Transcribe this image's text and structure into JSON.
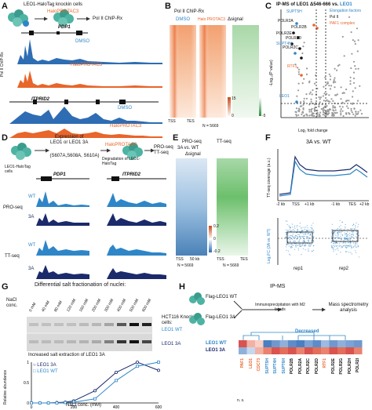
{
  "panels": {
    "A": {
      "letter": "A",
      "title": "LEO1-HaloTag knockin cells",
      "protac": "HaloPROTAC3",
      "chip": "Pol II ChIP-Rx",
      "track_group": "Pol II ChIP-Rx",
      "cond1": "DMSO",
      "cond2": "HaloPROTAC3",
      "gene1": "PDP1",
      "gene2": "ITPRID2"
    },
    "B": {
      "letter": "B",
      "title": "Pol II ChIP-Rx",
      "col1": "DMSO",
      "col2": "Halo PROTAC3",
      "col3": "Δsignal",
      "tss": "TSS",
      "tes": "TES",
      "n": "N = 5669",
      "scale_max": "15",
      "scale_min": "0",
      "scale2": "-5"
    },
    "C": {
      "letter": "C",
      "title_a": "IP-MS of LEO1 Δ546-666",
      "title_vs": "vs.",
      "title_b": "LEO1",
      "legend": [
        "Elongation factors",
        "Pol II",
        "PAF1 complex"
      ],
      "xlabel": "Log₂ fold change",
      "ylabel": "-Log₁₀(P value)",
      "xticks": [
        "-10",
        "-5",
        "0",
        "5",
        "10"
      ],
      "yticks": [
        "0",
        "2",
        "4",
        "6",
        "8"
      ],
      "labels": [
        "SUPT5H",
        "POLR2A",
        "POLR2B",
        "POLR2E",
        "POLR2D",
        "SUPT4H",
        "POLR2C",
        "RTF1",
        "LEO1"
      ]
    },
    "D": {
      "letter": "D",
      "step1": "Expression of",
      "step1b": "LEO1 or LEO1 3A",
      "mut": "(S607A,S608A, S610A)",
      "protac": "HaloPROTAC3",
      "out": "PRO-seq TT-seq",
      "deg": "Degradation of LEO1-HaloTag",
      "cells": "LEO1-HaloTag cells",
      "gene1": "PDP1",
      "gene2": "ITPRID2",
      "wt": "WT",
      "a3": "3A",
      "pro": "PRO-seq",
      "tt": "TT-seq"
    },
    "E": {
      "letter": "E",
      "h1": "PRO-seq",
      "h2": "TT-seq",
      "sub": "3A vs. WT",
      "delta": "Δsignal",
      "tss": "TSS",
      "tes": "TES",
      "scale": "50 kb",
      "n": "N = 5669",
      "ticks": [
        "0.2",
        "0",
        "-0.2"
      ]
    },
    "F": {
      "letter": "F",
      "title": "3A vs. WT",
      "ylabel1": "TT-seq coverage (a.u.)",
      "ylabel2": "Log₂FC (3A vs. WT)",
      "xt": [
        "-2 kb",
        "TSS",
        "+1 kb",
        "-1 kb",
        "TES",
        "+2 kb"
      ],
      "reps": [
        "rep1",
        "rep2"
      ]
    },
    "G": {
      "letter": "G",
      "title": "Differential salt fractionation of nuclei:",
      "nacl": "NaCl conc.",
      "conc": [
        "0 mM",
        "40 mM",
        "80 mM",
        "120 mM",
        "160 mM",
        "200 mM",
        "300 mM",
        "400 mM",
        "500 mM",
        "600 mM"
      ],
      "cell_label": "HCT116 Knockin cells:",
      "wt": "LEO1 WT",
      "a3": "LEO1 3A",
      "caption": "Increased salt extraction of LEO1 3A",
      "xlabel": "NaCl conc. (mM)",
      "ylabel": "Relative abundance"
    },
    "H": {
      "letter": "H",
      "title": "IP-MS",
      "flag1": "Flag-LEO1 WT",
      "flag2": "Flag-LEO1 3A",
      "step": "Immunoprecipitation with M2 beads",
      "ms": "Mass spectrometry analysis",
      "decreased": "Decreased",
      "rows": [
        "LEO1 WT",
        "LEO1 3A"
      ],
      "ns": "n. s.",
      "cols": [
        "PAF1",
        "LEO1",
        "CDC73",
        "SUPT5H",
        "SUPT4H",
        "SUPT6H",
        "POLR2B",
        "POLR2A",
        "POLR2C",
        "POLR2D",
        "RTF1",
        "POLR2E",
        "POLR2G",
        "POLR2H",
        "POLR2I"
      ],
      "col_colors": [
        "#e8652b",
        "#e8652b",
        "#e8652b",
        "#2e86c8",
        "#2e86c8",
        "#2e86c8",
        "#111111",
        "#111111",
        "#111111",
        "#111111",
        "#e8652b",
        "#111111",
        "#111111",
        "#111111",
        "#111111"
      ]
    }
  },
  "chart_data": [
    {
      "type": "line",
      "panel": "G",
      "xlabel": "NaCl conc. (mM)",
      "ylabel": "Relative abundance",
      "x": [
        0,
        40,
        80,
        120,
        160,
        200,
        300,
        400,
        500,
        600
      ],
      "series": [
        {
          "name": "LEO1 3A",
          "values": [
            0.0,
            0.0,
            0.0,
            0.01,
            0.02,
            0.05,
            0.3,
            0.75,
            1.0,
            0.8
          ]
        },
        {
          "name": "LEO1 WT",
          "values": [
            0.0,
            0.0,
            0.0,
            0.0,
            0.01,
            0.02,
            0.1,
            0.55,
            0.9,
            1.0
          ]
        }
      ],
      "ylim": [
        0,
        1
      ],
      "xlim": [
        0,
        600
      ],
      "colors": [
        "#1b2a6b",
        "#2e86c8"
      ]
    }
  ]
}
